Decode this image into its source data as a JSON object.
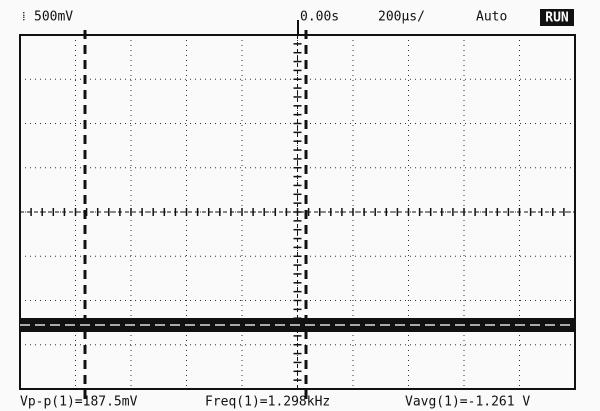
{
  "header": {
    "scale": "500mV",
    "time_offset": "0.00s",
    "time_scale": "200µs/",
    "trigger_mode": "Auto",
    "run_state": "RUN"
  },
  "measurements": [
    "Vp-p(1)=187.5mV",
    "Freq(1)=1.298kHz",
    "Vavg(1)=-1.261 V"
  ]
}
